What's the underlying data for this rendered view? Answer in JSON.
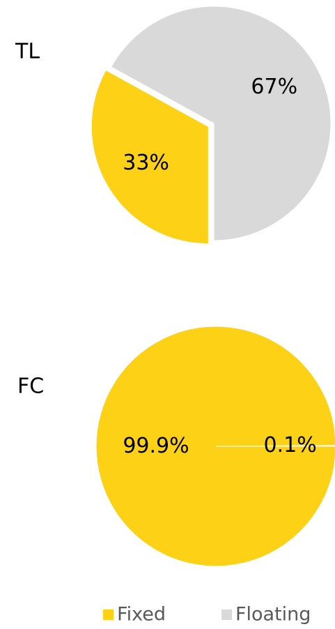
{
  "chart_data": [
    {
      "type": "pie",
      "title": "TL",
      "categories": [
        "Fixed",
        "Floating"
      ],
      "values": [
        33,
        67
      ],
      "value_labels": [
        "33%",
        "67%"
      ],
      "colors": [
        "#fcd116",
        "#d9d9d9"
      ],
      "legend": "bottom"
    },
    {
      "type": "pie",
      "title": "FC",
      "values": [
        99.9,
        0.1
      ],
      "value_labels": [
        "99.9%",
        "0.1%"
      ],
      "colors": [
        "#fcd116",
        "#c0c0c0"
      ]
    }
  ]
}
